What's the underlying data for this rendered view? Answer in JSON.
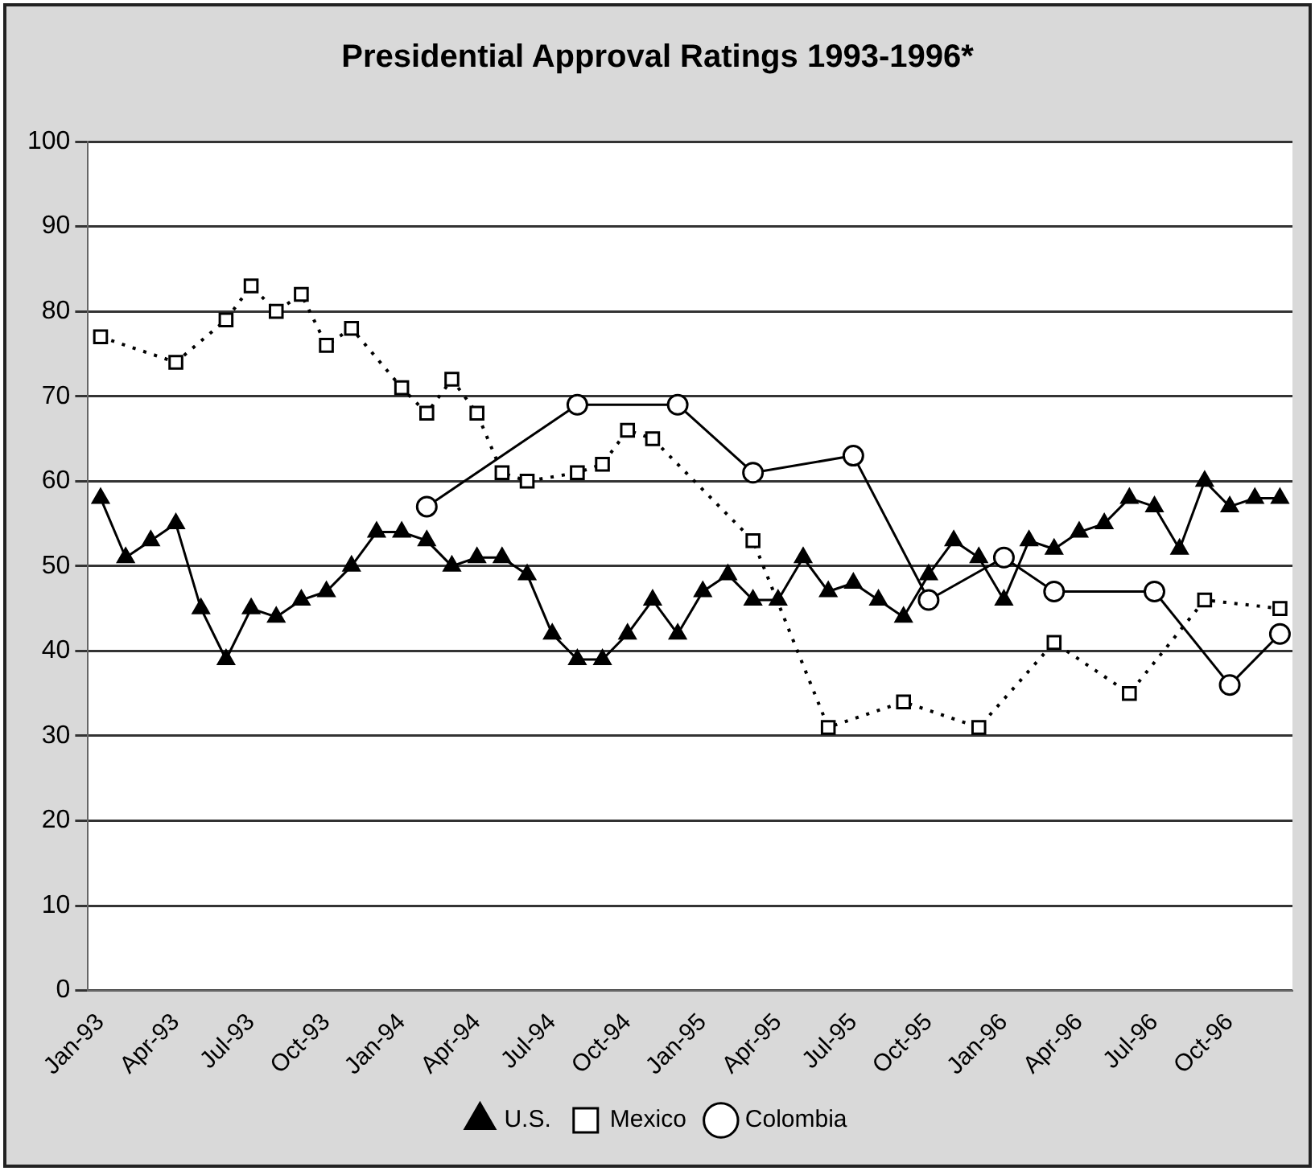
{
  "chart_data": {
    "type": "line",
    "title": "Presidential Approval Ratings 1993-1996*",
    "categories": [
      "Jan-93",
      null,
      null,
      "Apr-93",
      null,
      null,
      "Jul-93",
      null,
      null,
      "Oct-93",
      null,
      null,
      "Jan-94",
      null,
      null,
      "Apr-94",
      null,
      null,
      "Jul-94",
      null,
      null,
      "Oct-94",
      null,
      null,
      "Jan-95",
      null,
      null,
      "Apr-95",
      null,
      null,
      "Jul-95",
      null,
      null,
      "Oct-95",
      null,
      null,
      "Jan-96",
      null,
      null,
      "Apr-96",
      null,
      null,
      "Jul-96",
      null,
      null,
      "Oct-96",
      null,
      null
    ],
    "series": [
      {
        "name": "U.S.",
        "color": "#000000",
        "marker": "triangle",
        "line_style": "solid",
        "values": [
          58,
          51,
          53,
          55,
          45,
          39,
          45,
          44,
          46,
          47,
          50,
          54,
          54,
          53,
          50,
          51,
          51,
          49,
          42,
          39,
          39,
          42,
          46,
          42,
          47,
          49,
          46,
          46,
          51,
          47,
          48,
          46,
          44,
          49,
          53,
          51,
          46,
          53,
          52,
          54,
          55,
          58,
          57,
          52,
          60,
          57,
          58,
          58
        ]
      },
      {
        "name": "Mexico",
        "color": "#000000",
        "marker": "square",
        "line_style": "dotted",
        "values": [
          77,
          null,
          null,
          74,
          null,
          79,
          83,
          80,
          82,
          76,
          78,
          null,
          71,
          68,
          72,
          68,
          61,
          60,
          null,
          61,
          62,
          66,
          65,
          null,
          null,
          null,
          53,
          null,
          null,
          31,
          null,
          null,
          34,
          null,
          null,
          31,
          null,
          null,
          41,
          null,
          null,
          35,
          null,
          null,
          46,
          null,
          null,
          45
        ]
      },
      {
        "name": "Colombia",
        "color": "#000000",
        "marker": "circle",
        "line_style": "solid",
        "values": [
          null,
          null,
          null,
          null,
          null,
          null,
          null,
          null,
          null,
          null,
          null,
          null,
          null,
          57,
          null,
          null,
          null,
          null,
          null,
          69,
          null,
          null,
          null,
          69,
          null,
          null,
          61,
          null,
          null,
          null,
          63,
          null,
          null,
          46,
          null,
          null,
          51,
          null,
          47,
          null,
          null,
          null,
          47,
          null,
          null,
          36,
          null,
          42
        ]
      }
    ],
    "ylim": [
      0,
      100
    ],
    "yticks": [
      0,
      10,
      20,
      30,
      40,
      50,
      60,
      70,
      80,
      90,
      100
    ],
    "grid": "y",
    "legend": "bottom"
  }
}
